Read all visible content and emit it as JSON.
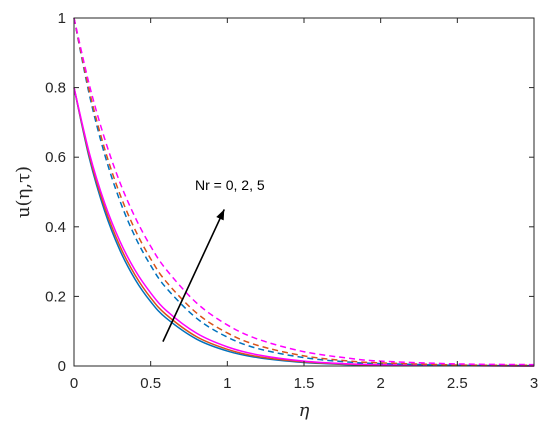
{
  "chart_data": {
    "type": "line",
    "title": "",
    "xlabel": "η",
    "ylabel": "u(η,τ)",
    "xlim": [
      0,
      3
    ],
    "ylim": [
      0,
      1
    ],
    "xticks": [
      0,
      0.5,
      1,
      1.5,
      2,
      2.5,
      3
    ],
    "yticks": [
      0,
      0.2,
      0.4,
      0.6,
      0.8,
      1
    ],
    "xtick_labels": [
      "0",
      "0.5",
      "1",
      "1.5",
      "2",
      "2.5",
      "3"
    ],
    "ytick_labels": [
      "0",
      "0.2",
      "0.4",
      "0.6",
      "0.8",
      "1"
    ],
    "grid": false,
    "legend": "none",
    "annotation": {
      "text": "Nr = 0, 2, 5",
      "arrow_from": [
        0.58,
        0.07
      ],
      "arrow_to": [
        0.98,
        0.45
      ]
    },
    "x": [
      0,
      0.1,
      0.2,
      0.3,
      0.4,
      0.5,
      0.6,
      0.8,
      1,
      1.2,
      1.5,
      1.8,
      2,
      2.5,
      3
    ],
    "series": [
      {
        "style": "solid",
        "color": "#0072bd",
        "values": [
          0.8,
          0.597,
          0.445,
          0.332,
          0.248,
          0.185,
          0.138,
          0.077,
          0.043,
          0.024,
          0.01,
          0.004,
          0.002,
          0.001,
          0
        ]
      },
      {
        "style": "solid",
        "color": "#d95319",
        "values": [
          0.8,
          0.604,
          0.456,
          0.344,
          0.26,
          0.196,
          0.148,
          0.084,
          0.048,
          0.027,
          0.012,
          0.005,
          0.003,
          0.001,
          0
        ]
      },
      {
        "style": "solid",
        "color": "#ff00ff",
        "values": [
          0.8,
          0.612,
          0.468,
          0.358,
          0.274,
          0.21,
          0.16,
          0.094,
          0.055,
          0.032,
          0.014,
          0.006,
          0.004,
          0.001,
          0
        ]
      },
      {
        "style": "dashed",
        "color": "#0072bd",
        "values": [
          1,
          0.78,
          0.608,
          0.474,
          0.37,
          0.289,
          0.225,
          0.137,
          0.083,
          0.05,
          0.024,
          0.011,
          0.007,
          0.002,
          0.001
        ]
      },
      {
        "style": "dashed",
        "color": "#d95319",
        "values": [
          1,
          0.79,
          0.624,
          0.493,
          0.39,
          0.308,
          0.243,
          0.152,
          0.095,
          0.059,
          0.029,
          0.014,
          0.009,
          0.003,
          0.002
        ]
      },
      {
        "style": "dashed",
        "color": "#ff00ff",
        "values": [
          1,
          0.808,
          0.653,
          0.527,
          0.426,
          0.344,
          0.278,
          0.181,
          0.118,
          0.077,
          0.041,
          0.022,
          0.014,
          0.006,
          0.004
        ]
      }
    ]
  }
}
